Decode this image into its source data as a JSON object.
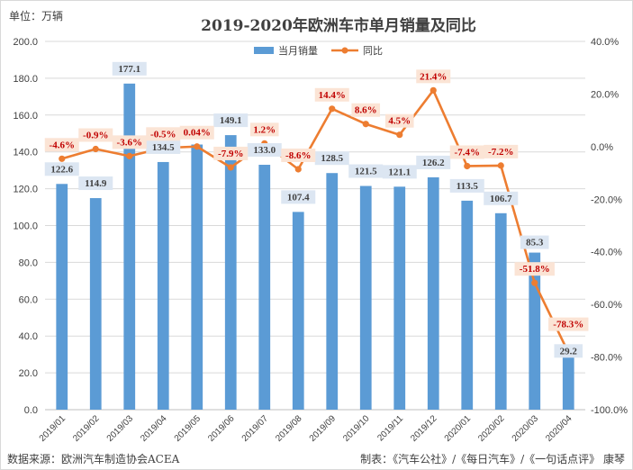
{
  "chart_data": {
    "type": "bar",
    "title": "2019-2020年欧洲车市单月销量及同比",
    "unit_label": "单位：万辆",
    "categories": [
      "2019/01",
      "2019/02",
      "2019/03",
      "2019/04",
      "2019/05",
      "2019/06",
      "2019/07",
      "2019/08",
      "2019/09",
      "2019/10",
      "2019/11",
      "2019/12",
      "2020/01",
      "2020/02",
      "2020/03",
      "2020/04"
    ],
    "series": [
      {
        "name": "当月销量",
        "type": "bar",
        "axis": "left",
        "color": "#5b9bd5",
        "values": [
          122.6,
          114.9,
          177.1,
          134.5,
          144.0,
          149.1,
          133.0,
          107.4,
          128.5,
          121.5,
          121.1,
          126.2,
          113.5,
          106.7,
          85.3,
          29.2
        ],
        "labels": [
          "122.6",
          "114.9",
          "177.1",
          "134.5",
          "",
          "149.1",
          "133.0",
          "107.4",
          "128.5",
          "121.5",
          "121.1",
          "126.2",
          "113.5",
          "106.7",
          "85.3",
          "29.2"
        ]
      },
      {
        "name": "同比",
        "type": "line",
        "axis": "right",
        "color": "#ed7d31",
        "values": [
          -4.6,
          -0.9,
          -3.6,
          -0.5,
          0.04,
          -7.9,
          1.2,
          -8.6,
          14.4,
          8.6,
          4.5,
          21.4,
          -7.4,
          -7.2,
          -51.8,
          -78.3
        ],
        "labels": [
          "-4.6%",
          "-0.9%",
          "-3.6%",
          "-0.5%",
          "0.04%",
          "-7.9%",
          "1.2%",
          "-8.6%",
          "14.4%",
          "8.6%",
          "4.5%",
          "21.4%",
          "-7.4%",
          "-7.2%",
          "-51.8%",
          "-78.3%"
        ]
      }
    ],
    "y_left": {
      "ylim": [
        0,
        200
      ],
      "ticks": [
        "0.0",
        "20.0",
        "40.0",
        "60.0",
        "80.0",
        "100.0",
        "120.0",
        "140.0",
        "160.0",
        "180.0",
        "200.0"
      ]
    },
    "y_right": {
      "ylim": [
        -100,
        40
      ],
      "ticks": [
        "-100.0%",
        "-80.0%",
        "-60.0%",
        "-40.0%",
        "-20.0%",
        "0.0%",
        "20.0%",
        "40.0%"
      ]
    },
    "grid": true,
    "legend_position": "top-center",
    "label_colors": {
      "bar_label_bg": "#dce6f2",
      "pct_label_bg": "#fbe4d5",
      "pct_label_text": "#c00000"
    }
  },
  "footer": {
    "source": "数据来源：欧洲汽车制造协会ACEA",
    "credit": "制表：《汽车公社》/《每日汽车》/《一句话点评》 康琴"
  }
}
